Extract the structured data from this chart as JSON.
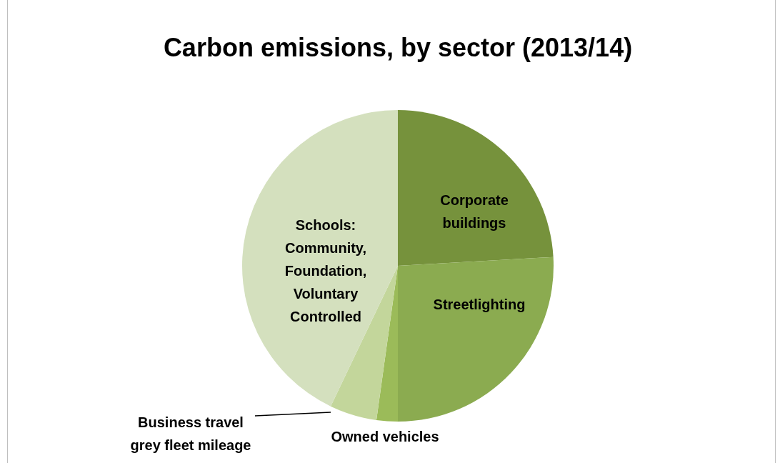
{
  "chart_data": {
    "type": "pie",
    "title": "Carbon emissions, by sector (2013/14)",
    "categories": [
      "Corporate buildings",
      "Streetlighting",
      "Owned vehicles",
      "Business travel grey fleet mileage",
      "Schools: Community, Foundation, Voluntary Controlled"
    ],
    "values": [
      24.1,
      25.9,
      2.2,
      4.9,
      42.9
    ],
    "colors": [
      "#76923c",
      "#8bab50",
      "#9bbb59",
      "#c3d69b",
      "#d4e0be"
    ]
  }
}
